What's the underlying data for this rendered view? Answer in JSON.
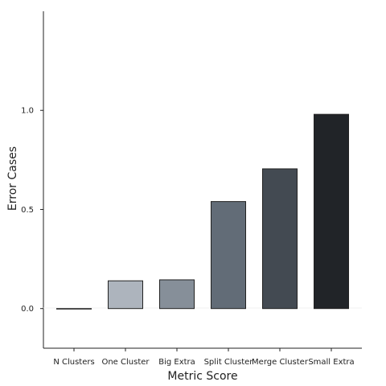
{
  "chart_data": {
    "type": "bar",
    "title": "",
    "xlabel": "Metric Score",
    "ylabel": "Error Cases",
    "categories": [
      "N Clusters",
      "One Cluster",
      "Big Extra",
      "Split Cluster",
      "Merge Cluster",
      "Small Extra"
    ],
    "values": [
      0.0,
      0.14,
      0.145,
      0.54,
      0.705,
      0.98
    ],
    "colors": [
      "#dfe3e7",
      "#adb4bd",
      "#868f99",
      "#626c77",
      "#434a52",
      "#212428"
    ],
    "ylim": [
      -0.2,
      1.5
    ],
    "yticks": [
      0.0,
      0.5,
      1.0
    ],
    "ytick_labels": [
      "0.0",
      "0.5",
      "1.0"
    ],
    "grid": false,
    "zero_line": true
  }
}
